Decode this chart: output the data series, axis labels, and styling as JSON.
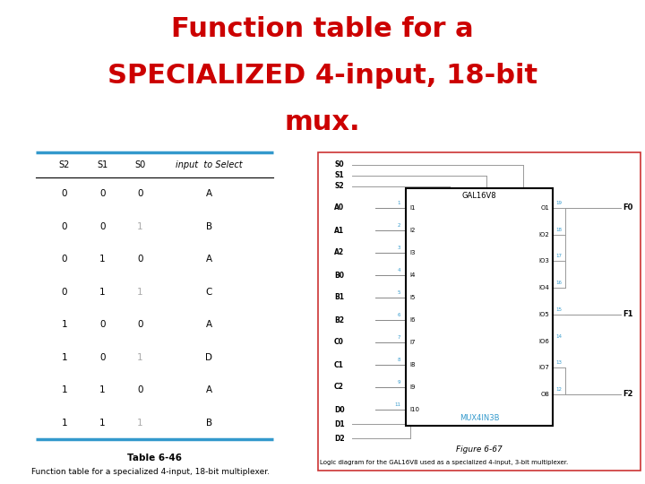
{
  "title_line1": "Function table for a",
  "title_line2": "SPECIALIZED 4-input, 18-bit",
  "title_line3": "mux.",
  "title_color": "#cc0000",
  "title_fontsize": 22,
  "title_fontweight": "bold",
  "bg_color": "#ffffff",
  "table_header": [
    "S2",
    "S1",
    "S0",
    "input  to Select"
  ],
  "table_rows": [
    [
      "0",
      "0",
      "0",
      "A"
    ],
    [
      "0",
      "0",
      "1",
      "B"
    ],
    [
      "0",
      "1",
      "0",
      "A"
    ],
    [
      "0",
      "1",
      "1",
      "C"
    ],
    [
      "1",
      "0",
      "0",
      "A"
    ],
    [
      "1",
      "0",
      "1",
      "D"
    ],
    [
      "1",
      "1",
      "0",
      "A"
    ],
    [
      "1",
      "1",
      "1",
      "B"
    ]
  ],
  "table_caption": "Table 6-46",
  "table_subcaption": "Function table for a specialized 4-input, 18-bit multiplexer.",
  "divider_color": "#3399cc",
  "divider_lw": 2.5,
  "figure_caption": "Figure 6-67",
  "figure_subcaption": "Logic diagram for the GAL16V8 used as a specialized 4-input, 3-bit multiplexer.",
  "right_border_color": "#cc3333"
}
